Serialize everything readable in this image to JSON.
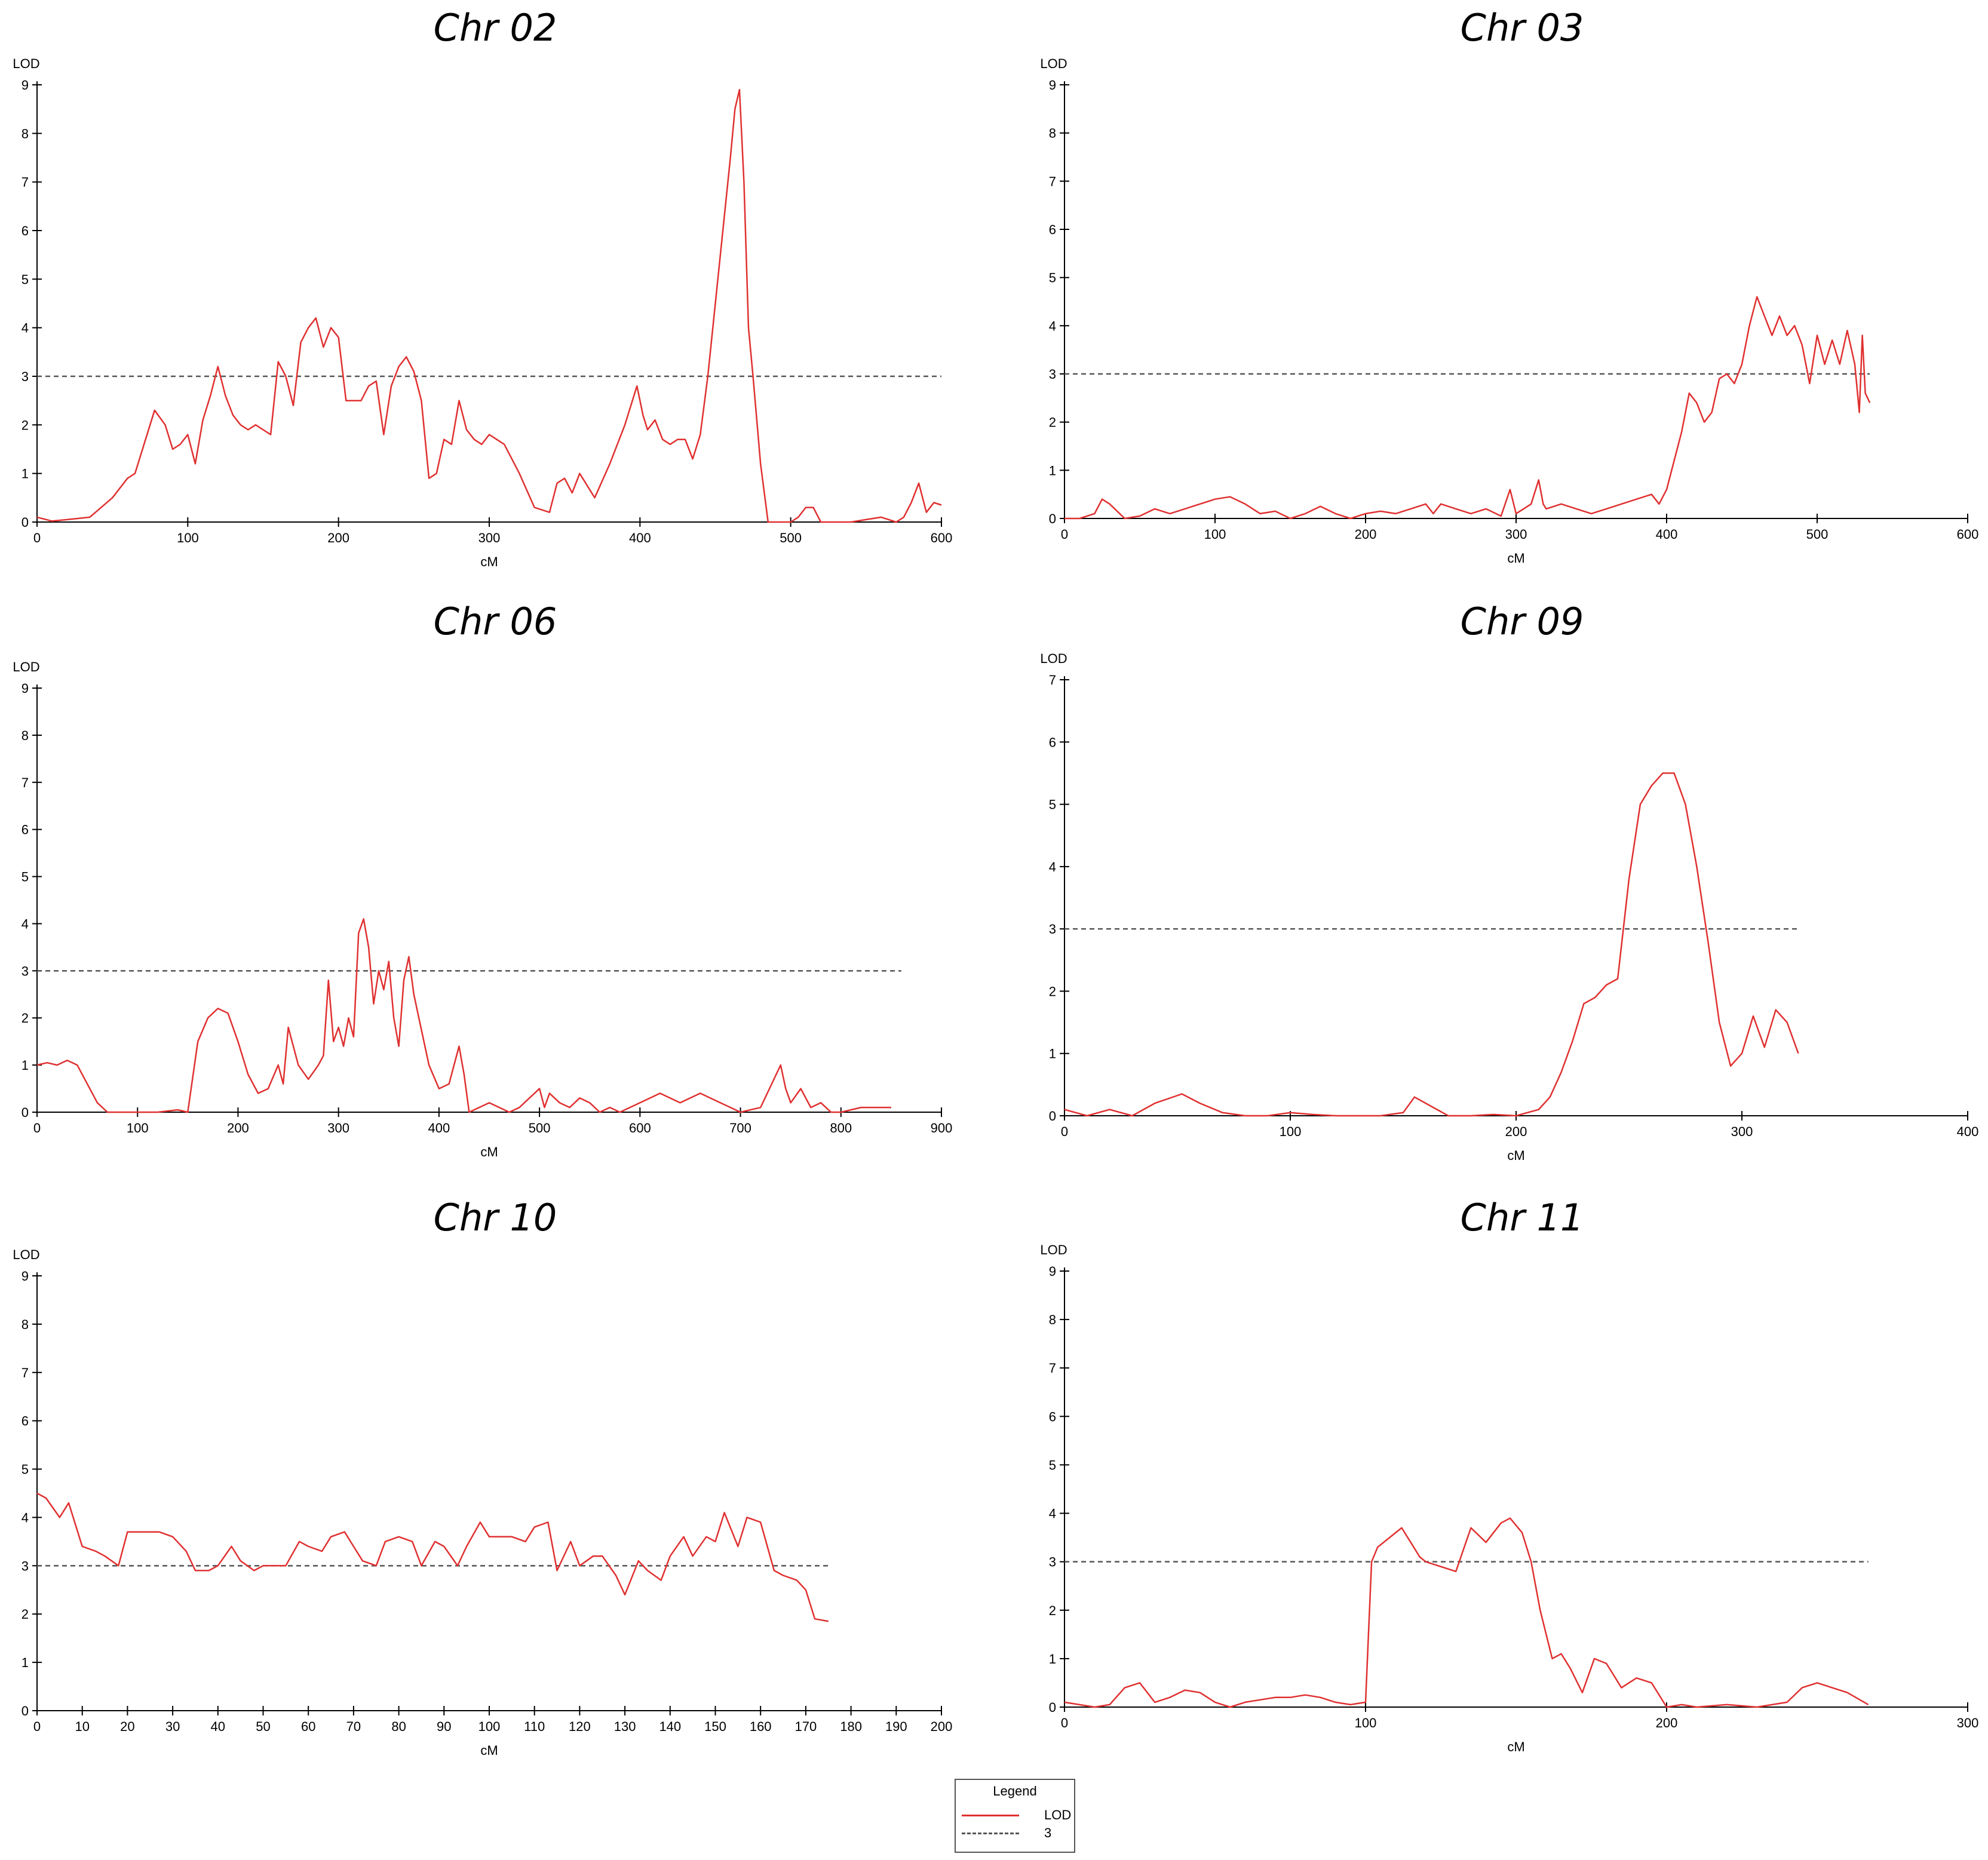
{
  "colors": {
    "lod_line": "#e03030",
    "threshold_line": "#555555",
    "axis": "#000000"
  },
  "chart_data": [
    {
      "type": "line",
      "title": "Chr 02",
      "xlabel": "cM",
      "ylabel": "LOD",
      "xlim": [
        0,
        600
      ],
      "ylim": [
        0,
        9
      ],
      "xticks": [
        0,
        100,
        200,
        300,
        400,
        500,
        600
      ],
      "yticks": [
        0,
        1,
        2,
        3,
        4,
        5,
        6,
        7,
        8,
        9
      ],
      "threshold": 3,
      "threshold_xmax": 600,
      "series": [
        {
          "name": "LOD",
          "x": [
            0,
            10,
            20,
            35,
            50,
            60,
            65,
            70,
            78,
            85,
            90,
            95,
            100,
            105,
            110,
            115,
            120,
            125,
            130,
            135,
            140,
            145,
            150,
            155,
            160,
            165,
            170,
            175,
            180,
            185,
            190,
            195,
            200,
            205,
            210,
            215,
            220,
            225,
            230,
            235,
            240,
            245,
            250,
            255,
            260,
            265,
            270,
            275,
            280,
            285,
            290,
            295,
            300,
            310,
            320,
            330,
            340,
            345,
            350,
            355,
            360,
            370,
            380,
            390,
            398,
            402,
            405,
            410,
            415,
            420,
            425,
            430,
            435,
            440,
            445,
            450,
            455,
            460,
            463,
            466,
            469,
            472,
            475,
            480,
            485,
            490,
            495,
            500,
            505,
            510,
            515,
            520,
            530,
            540,
            550,
            560,
            570,
            575,
            580,
            585,
            590,
            595,
            600
          ],
          "values": [
            0.1,
            0.02,
            0.05,
            0.1,
            0.5,
            0.9,
            1.0,
            1.5,
            2.3,
            2.0,
            1.5,
            1.6,
            1.8,
            1.2,
            2.1,
            2.6,
            3.2,
            2.6,
            2.2,
            2.0,
            1.9,
            2.0,
            1.9,
            1.8,
            3.3,
            3.0,
            2.4,
            3.7,
            4.0,
            4.2,
            3.6,
            4.0,
            3.8,
            2.5,
            2.5,
            2.5,
            2.8,
            2.9,
            1.8,
            2.8,
            3.2,
            3.4,
            3.1,
            2.5,
            0.9,
            1.0,
            1.7,
            1.6,
            2.5,
            1.9,
            1.7,
            1.6,
            1.8,
            1.6,
            1.0,
            0.3,
            0.2,
            0.8,
            0.9,
            0.6,
            1.0,
            0.5,
            1.2,
            2.0,
            2.8,
            2.2,
            1.9,
            2.1,
            1.7,
            1.6,
            1.7,
            1.7,
            1.3,
            1.8,
            3.0,
            4.5,
            6.0,
            7.5,
            8.5,
            8.9,
            7.0,
            4.0,
            3.0,
            1.2,
            0.0,
            0.0,
            0.0,
            0.0,
            0.1,
            0.3,
            0.3,
            0.0,
            0.0,
            0.0,
            0.05,
            0.1,
            0.0,
            0.1,
            0.4,
            0.8,
            0.2,
            0.4,
            0.35
          ]
        }
      ]
    },
    {
      "type": "line",
      "title": "Chr 03",
      "xlabel": "cM",
      "ylabel": "LOD",
      "xlim": [
        0,
        600
      ],
      "ylim": [
        0,
        9
      ],
      "xticks": [
        0,
        100,
        200,
        300,
        400,
        500,
        600
      ],
      "yticks": [
        0,
        1,
        2,
        3,
        4,
        5,
        6,
        7,
        8,
        9
      ],
      "threshold": 3,
      "threshold_xmax": 535,
      "series": [
        {
          "name": "LOD",
          "x": [
            0,
            10,
            20,
            25,
            30,
            40,
            50,
            60,
            70,
            80,
            90,
            100,
            110,
            120,
            130,
            140,
            150,
            160,
            170,
            180,
            190,
            200,
            210,
            220,
            230,
            240,
            245,
            250,
            260,
            270,
            280,
            290,
            296,
            300,
            305,
            310,
            315,
            318,
            320,
            330,
            340,
            350,
            360,
            370,
            380,
            390,
            395,
            400,
            405,
            410,
            415,
            420,
            425,
            430,
            435,
            440,
            445,
            450,
            455,
            460,
            465,
            470,
            475,
            480,
            485,
            490,
            495,
            500,
            505,
            510,
            515,
            520,
            525,
            528,
            530,
            532,
            535
          ],
          "values": [
            0.0,
            0.0,
            0.1,
            0.4,
            0.3,
            0.0,
            0.05,
            0.2,
            0.1,
            0.2,
            0.3,
            0.4,
            0.45,
            0.3,
            0.1,
            0.15,
            0.0,
            0.1,
            0.25,
            0.1,
            0.0,
            0.1,
            0.15,
            0.1,
            0.2,
            0.3,
            0.1,
            0.3,
            0.2,
            0.1,
            0.2,
            0.05,
            0.6,
            0.1,
            0.2,
            0.3,
            0.8,
            0.3,
            0.2,
            0.3,
            0.2,
            0.1,
            0.2,
            0.3,
            0.4,
            0.5,
            0.3,
            0.6,
            1.2,
            1.8,
            2.6,
            2.4,
            2.0,
            2.2,
            2.9,
            3.0,
            2.8,
            3.2,
            4.0,
            4.6,
            4.2,
            3.8,
            4.2,
            3.8,
            4.0,
            3.6,
            2.8,
            3.8,
            3.2,
            3.7,
            3.2,
            3.9,
            3.2,
            2.2,
            3.8,
            2.6,
            2.4
          ]
        }
      ]
    },
    {
      "type": "line",
      "title": "Chr 06",
      "xlabel": "cM",
      "ylabel": "LOD",
      "xlim": [
        0,
        900
      ],
      "ylim": [
        0,
        9
      ],
      "xticks": [
        0,
        100,
        200,
        300,
        400,
        500,
        600,
        700,
        800,
        900
      ],
      "yticks": [
        0,
        1,
        2,
        3,
        4,
        5,
        6,
        7,
        8,
        9
      ],
      "threshold": 3,
      "threshold_xmax": 860,
      "series": [
        {
          "name": "LOD",
          "x": [
            0,
            10,
            20,
            30,
            40,
            50,
            60,
            70,
            80,
            100,
            120,
            140,
            150,
            160,
            170,
            180,
            190,
            200,
            210,
            220,
            230,
            240,
            245,
            250,
            260,
            270,
            280,
            285,
            290,
            295,
            300,
            305,
            310,
            315,
            320,
            325,
            330,
            335,
            340,
            345,
            350,
            355,
            360,
            365,
            370,
            375,
            380,
            390,
            400,
            410,
            420,
            425,
            430,
            440,
            450,
            460,
            470,
            480,
            490,
            500,
            505,
            510,
            520,
            530,
            540,
            550,
            560,
            570,
            580,
            600,
            620,
            640,
            660,
            680,
            700,
            720,
            740,
            745,
            750,
            760,
            770,
            780,
            790,
            800,
            820,
            850
          ],
          "values": [
            1.0,
            1.05,
            1.0,
            1.1,
            1.0,
            0.6,
            0.2,
            0.0,
            0.0,
            0.0,
            0.0,
            0.05,
            0.0,
            1.5,
            2.0,
            2.2,
            2.1,
            1.5,
            0.8,
            0.4,
            0.5,
            1.0,
            0.6,
            1.8,
            1.0,
            0.7,
            1.0,
            1.2,
            2.8,
            1.5,
            1.8,
            1.4,
            2.0,
            1.6,
            3.8,
            4.1,
            3.5,
            2.3,
            3.0,
            2.6,
            3.2,
            2.0,
            1.4,
            2.8,
            3.3,
            2.5,
            2.0,
            1.0,
            0.5,
            0.6,
            1.4,
            0.8,
            0.0,
            0.1,
            0.2,
            0.1,
            0.0,
            0.1,
            0.3,
            0.5,
            0.1,
            0.4,
            0.2,
            0.1,
            0.3,
            0.2,
            0.0,
            0.1,
            0.0,
            0.2,
            0.4,
            0.2,
            0.4,
            0.2,
            0.0,
            0.1,
            1.0,
            0.5,
            0.2,
            0.5,
            0.1,
            0.2,
            0.0,
            0.0,
            0.1,
            0.1
          ]
        }
      ]
    },
    {
      "type": "line",
      "title": "Chr 09",
      "xlabel": "cM",
      "ylabel": "LOD",
      "xlim": [
        0,
        400
      ],
      "ylim": [
        0,
        7
      ],
      "xticks": [
        0,
        100,
        200,
        300,
        400
      ],
      "yticks": [
        0,
        1,
        2,
        3,
        4,
        5,
        6,
        7
      ],
      "threshold": 3,
      "threshold_xmax": 325,
      "series": [
        {
          "name": "LOD",
          "x": [
            0,
            10,
            20,
            30,
            40,
            52,
            60,
            70,
            80,
            90,
            100,
            110,
            120,
            130,
            140,
            150,
            155,
            160,
            165,
            170,
            180,
            190,
            200,
            210,
            215,
            220,
            225,
            230,
            235,
            240,
            245,
            250,
            255,
            260,
            265,
            270,
            275,
            280,
            285,
            290,
            295,
            300,
            305,
            310,
            315,
            320,
            325
          ],
          "values": [
            0.1,
            0.0,
            0.1,
            0.0,
            0.2,
            0.35,
            0.2,
            0.05,
            0.0,
            0.0,
            0.05,
            0.02,
            0.0,
            0.0,
            0.0,
            0.05,
            0.3,
            0.2,
            0.1,
            0.0,
            0.0,
            0.02,
            0.0,
            0.1,
            0.3,
            0.7,
            1.2,
            1.8,
            1.9,
            2.1,
            2.2,
            3.8,
            5.0,
            5.3,
            5.5,
            5.5,
            5.0,
            4.0,
            2.8,
            1.5,
            0.8,
            1.0,
            1.6,
            1.1,
            1.7,
            1.5,
            1.0
          ]
        }
      ]
    },
    {
      "type": "line",
      "title": "Chr 10",
      "xlabel": "cM",
      "ylabel": "LOD",
      "xlim": [
        0,
        200
      ],
      "ylim": [
        0,
        9
      ],
      "xticks": [
        0,
        10,
        20,
        30,
        40,
        50,
        60,
        70,
        80,
        90,
        100,
        110,
        120,
        130,
        140,
        150,
        160,
        170,
        180,
        190,
        200
      ],
      "yticks": [
        0,
        1,
        2,
        3,
        4,
        5,
        6,
        7,
        8,
        9
      ],
      "threshold": 3,
      "threshold_xmax": 175,
      "series": [
        {
          "name": "LOD",
          "x": [
            0,
            2,
            5,
            7,
            10,
            13,
            15,
            18,
            20,
            23,
            27,
            30,
            33,
            35,
            38,
            40,
            43,
            45,
            48,
            50,
            53,
            55,
            58,
            60,
            63,
            65,
            68,
            70,
            72,
            75,
            77,
            80,
            83,
            85,
            88,
            90,
            93,
            95,
            98,
            100,
            103,
            105,
            108,
            110,
            113,
            115,
            118,
            120,
            123,
            125,
            128,
            130,
            133,
            135,
            138,
            140,
            143,
            145,
            148,
            150,
            152,
            155,
            157,
            160,
            163,
            165,
            168,
            170,
            172,
            175
          ],
          "values": [
            4.5,
            4.4,
            4.0,
            4.3,
            3.4,
            3.3,
            3.2,
            3.0,
            3.7,
            3.7,
            3.7,
            3.6,
            3.3,
            2.9,
            2.9,
            3.0,
            3.4,
            3.1,
            2.9,
            3.0,
            3.0,
            3.0,
            3.5,
            3.4,
            3.3,
            3.6,
            3.7,
            3.4,
            3.1,
            3.0,
            3.5,
            3.6,
            3.5,
            3.0,
            3.5,
            3.4,
            3.0,
            3.4,
            3.9,
            3.6,
            3.6,
            3.6,
            3.5,
            3.8,
            3.9,
            2.9,
            3.5,
            3.0,
            3.2,
            3.2,
            2.8,
            2.4,
            3.1,
            2.9,
            2.7,
            3.2,
            3.6,
            3.2,
            3.6,
            3.5,
            4.1,
            3.4,
            4.0,
            3.9,
            2.9,
            2.8,
            2.7,
            2.5,
            1.9,
            1.85
          ]
        }
      ]
    },
    {
      "type": "line",
      "title": "Chr 11",
      "xlabel": "cM",
      "ylabel": "LOD",
      "xlim": [
        0,
        300
      ],
      "ylim": [
        0,
        9
      ],
      "xticks": [
        0,
        100,
        200,
        300
      ],
      "yticks": [
        0,
        1,
        2,
        3,
        4,
        5,
        6,
        7,
        8,
        9
      ],
      "threshold": 3,
      "threshold_xmax": 267,
      "series": [
        {
          "name": "LOD",
          "x": [
            0,
            10,
            15,
            20,
            25,
            30,
            35,
            40,
            45,
            50,
            55,
            60,
            65,
            70,
            75,
            80,
            85,
            90,
            95,
            100,
            102,
            104,
            108,
            112,
            115,
            118,
            120,
            125,
            130,
            135,
            140,
            145,
            148,
            152,
            155,
            158,
            162,
            165,
            168,
            172,
            176,
            180,
            185,
            190,
            195,
            200,
            205,
            210,
            220,
            230,
            240,
            245,
            250,
            255,
            260,
            267
          ],
          "values": [
            0.1,
            0.0,
            0.05,
            0.4,
            0.5,
            0.1,
            0.2,
            0.35,
            0.3,
            0.1,
            0.0,
            0.1,
            0.15,
            0.2,
            0.2,
            0.25,
            0.2,
            0.1,
            0.05,
            0.1,
            3.0,
            3.3,
            3.5,
            3.7,
            3.4,
            3.1,
            3.0,
            2.9,
            2.8,
            3.7,
            3.4,
            3.8,
            3.9,
            3.6,
            3.0,
            2.0,
            1.0,
            1.1,
            0.8,
            0.3,
            1.0,
            0.9,
            0.4,
            0.6,
            0.5,
            0.0,
            0.05,
            0.0,
            0.05,
            0.0,
            0.1,
            0.4,
            0.5,
            0.4,
            0.3,
            0.05
          ]
        }
      ]
    }
  ],
  "legend": {
    "title": "Legend",
    "items": [
      {
        "label": "LOD"
      },
      {
        "label": "3"
      }
    ]
  }
}
